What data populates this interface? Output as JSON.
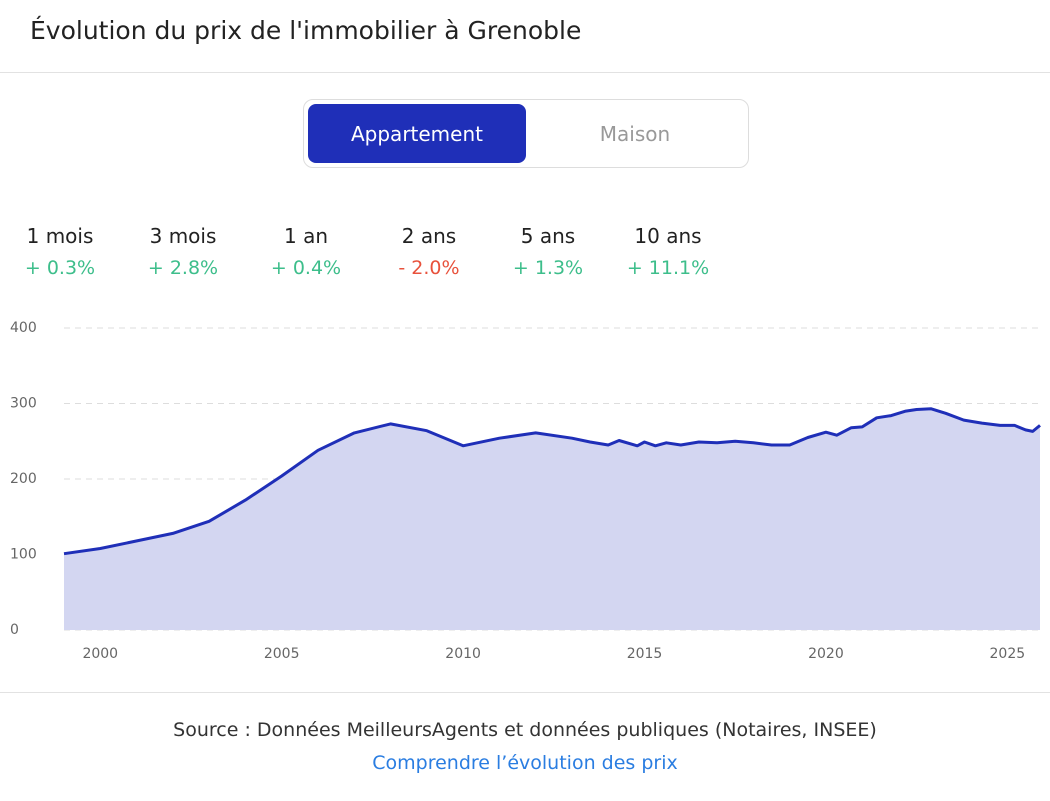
{
  "header": {
    "title": "Évolution du prix de l'immobilier à Grenoble"
  },
  "tabs": [
    "Appartement",
    "Maison"
  ],
  "stats": [
    {
      "label": "1 mois",
      "change": "+ 0.3%"
    },
    {
      "label": "3 mois",
      "change": "+ 2.8%"
    },
    {
      "label": "1 an",
      "change": "+ 0.4%"
    },
    {
      "label": "2 ans",
      "change": "- 2.0%"
    },
    {
      "label": "5 ans",
      "change": "+ 1.3%"
    },
    {
      "label": "10 ans",
      "change": "+ 11.1%"
    }
  ],
  "chart_data": {
    "type": "area",
    "color": "#1f2fb8",
    "fill": "#d3d6f1",
    "grid": true,
    "x": [
      1999,
      2000,
      2002,
      2003,
      2004,
      2005,
      2006,
      2007,
      2008,
      2009,
      2010,
      2011,
      2012,
      2013,
      2013.5,
      2014,
      2014.3,
      2014.8,
      2015,
      2015.3,
      2015.6,
      2016,
      2016.5,
      2017,
      2017.5,
      2018,
      2018.5,
      2019,
      2019.5,
      2020,
      2020.3,
      2020.7,
      2021,
      2021.4,
      2021.8,
      2022.2,
      2022.5,
      2022.9,
      2023.3,
      2023.8,
      2024.3,
      2024.8,
      2025.2,
      2025.5,
      2025.7,
      2025.9
    ],
    "values": [
      101,
      108,
      128,
      144,
      172,
      204,
      238,
      261,
      273,
      264,
      244,
      254,
      261,
      254,
      249,
      245,
      251,
      244,
      249,
      244,
      248,
      245,
      249,
      248,
      250,
      248,
      245,
      245,
      255,
      262,
      258,
      268,
      269,
      281,
      284,
      290,
      292,
      293,
      287,
      278,
      274,
      271,
      271,
      265,
      263,
      271
    ],
    "xlim": [
      1999,
      2025.9
    ],
    "xticks": [
      2000,
      2005,
      2010,
      2015,
      2020,
      2025
    ],
    "ylim": [
      0,
      400
    ],
    "yticks": [
      0,
      100,
      200,
      300,
      400
    ]
  },
  "footer": {
    "source": "Source : Données MeilleursAgents et données publiques (Notaires, INSEE)",
    "link": "Comprendre l’évolution des prix"
  }
}
